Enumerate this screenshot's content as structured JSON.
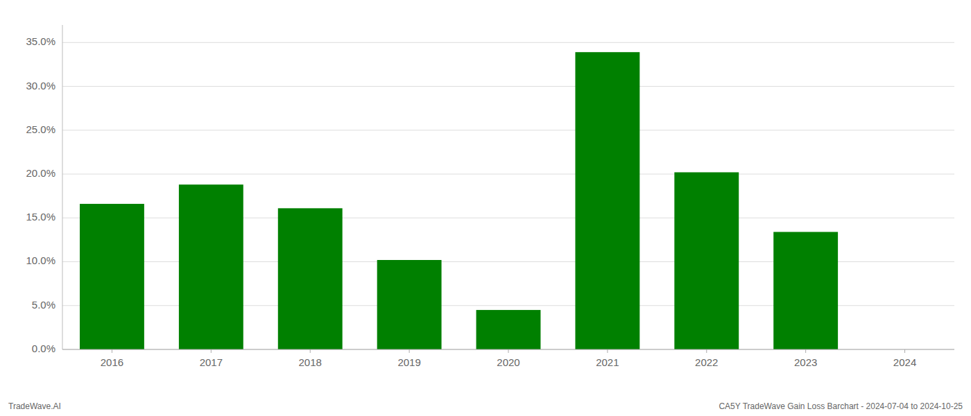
{
  "chart_data": {
    "type": "bar",
    "categories": [
      "2016",
      "2017",
      "2018",
      "2019",
      "2020",
      "2021",
      "2022",
      "2023",
      "2024"
    ],
    "values": [
      0.166,
      0.188,
      0.161,
      0.102,
      0.045,
      0.339,
      0.202,
      0.134,
      0.0
    ],
    "color": "#008000",
    "ylim": [
      0.0,
      0.37
    ],
    "yticks": [
      {
        "value": 0.0,
        "label": "0.0%"
      },
      {
        "value": 0.05,
        "label": "5.0%"
      },
      {
        "value": 0.1,
        "label": "10.0%"
      },
      {
        "value": 0.15,
        "label": "15.0%"
      },
      {
        "value": 0.2,
        "label": "20.0%"
      },
      {
        "value": 0.25,
        "label": "25.0%"
      },
      {
        "value": 0.3,
        "label": "30.0%"
      },
      {
        "value": 0.35,
        "label": "35.0%"
      }
    ],
    "grid": true,
    "annotations": [
      "TradeWave.AI",
      "CA5Y TradeWave Gain Loss Barchart - 2024-07-04 to 2024-10-25"
    ]
  }
}
